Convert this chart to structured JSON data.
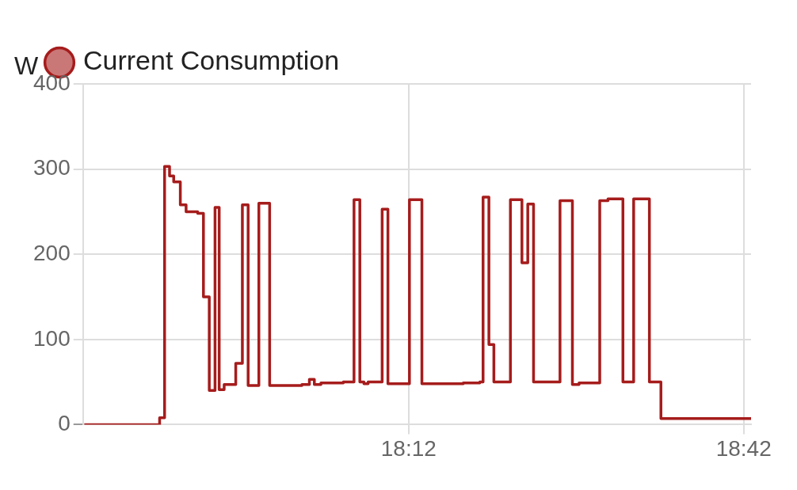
{
  "chart_data": {
    "type": "step",
    "ylabel": "W",
    "legend": "top left",
    "grid": true,
    "marker": "none",
    "xlim": [
      17.714,
      18.711
    ],
    "xticks": [
      {
        "value": 18.2,
        "label": "18:12"
      },
      {
        "value": 18.7,
        "label": "18:42"
      }
    ],
    "ylim": [
      0,
      400
    ],
    "yticks": [
      0,
      100,
      200,
      300,
      400
    ],
    "series": [
      {
        "name": "Current Consumption",
        "color": "#a61c1c",
        "x": [
          17.716,
          17.8284,
          17.8358,
          17.8432,
          17.8494,
          17.8593,
          17.8679,
          17.8852,
          17.8938,
          17.9025,
          17.9111,
          17.9173,
          17.9247,
          17.942,
          17.9519,
          17.9605,
          17.9765,
          17.9926,
          18.0407,
          18.0519,
          18.0593,
          18.0691,
          18.1025,
          18.1185,
          18.1272,
          18.1333,
          18.1395,
          18.1605,
          18.1691,
          18.2012,
          18.2198,
          18.2815,
          18.3062,
          18.3111,
          18.3198,
          18.3272,
          18.3519,
          18.3691,
          18.3778,
          18.3864,
          18.4259,
          18.4444,
          18.4543,
          18.4852,
          18.4975,
          18.5198,
          18.5358,
          18.5593,
          18.5765,
          18.711
        ],
        "values": [
          0,
          8,
          303,
          292,
          285,
          258,
          250,
          248,
          150,
          40,
          255,
          41,
          47,
          72,
          258,
          46,
          260,
          46,
          47,
          53,
          47,
          49,
          50,
          264,
          50,
          48,
          50,
          253,
          48,
          264,
          48,
          49,
          50,
          267,
          94,
          50,
          264,
          190,
          259,
          50,
          263,
          47,
          49,
          263,
          265,
          50,
          265,
          50,
          7,
          7
        ]
      }
    ]
  }
}
